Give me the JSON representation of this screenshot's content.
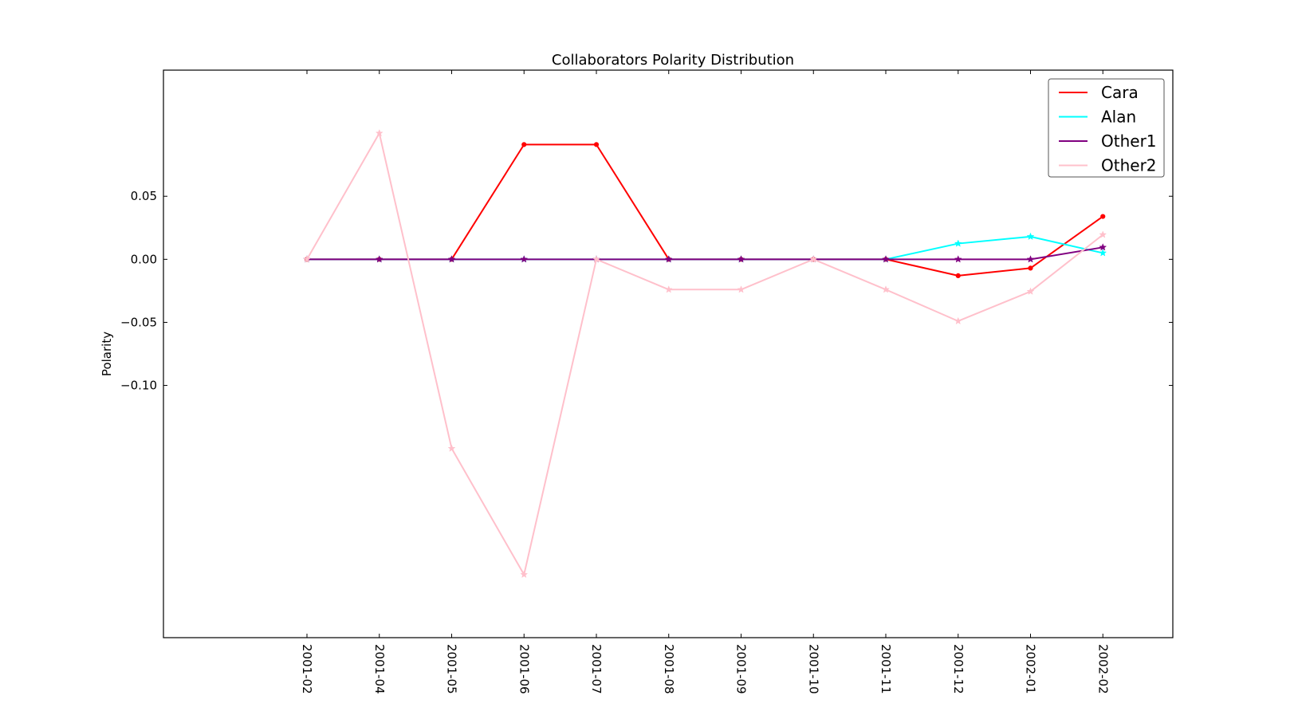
{
  "chart_data": {
    "type": "line",
    "title": "Collaborators Polarity Distribution",
    "xlabel": "",
    "ylabel": "Polarity",
    "categories": [
      "2001-02",
      "2001-04",
      "2001-05",
      "2001-06",
      "2001-07",
      "2001-08",
      "2001-09",
      "2001-10",
      "2001-11",
      "2001-12",
      "2002-01",
      "2002-02"
    ],
    "yticks": [
      0.05,
      0.0,
      -0.05,
      -0.1
    ],
    "ytick_labels": [
      "0.05",
      "0.00",
      "−0.05",
      "−0.10"
    ],
    "ylim": [
      -0.3,
      0.15
    ],
    "grid": false,
    "legend_position": "top-right",
    "series": [
      {
        "name": "Cara",
        "color": "#ff0000",
        "marker": "dot",
        "values": [
          0.0,
          0.0,
          0.0,
          0.091,
          0.091,
          0.0,
          0.0,
          0.0,
          0.0,
          -0.013,
          -0.007,
          0.034
        ]
      },
      {
        "name": "Alan",
        "color": "#00ffff",
        "marker": "star",
        "values": [
          0.0,
          0.0,
          0.0,
          0.0,
          0.0,
          0.0,
          0.0,
          0.0,
          0.0,
          0.0125,
          0.018,
          0.005
        ]
      },
      {
        "name": "Other1",
        "color": "#800080",
        "marker": "star",
        "values": [
          0.0,
          0.0,
          0.0,
          0.0,
          0.0,
          0.0,
          0.0,
          0.0,
          0.0,
          0.0,
          0.0,
          0.0095
        ]
      },
      {
        "name": "Other2",
        "color": "#ffc0cb",
        "marker": "star",
        "values": [
          0.0,
          0.1,
          -0.15,
          -0.25,
          0.0,
          -0.024,
          -0.024,
          0.0,
          -0.024,
          -0.049,
          -0.0255,
          0.0195
        ]
      }
    ]
  }
}
